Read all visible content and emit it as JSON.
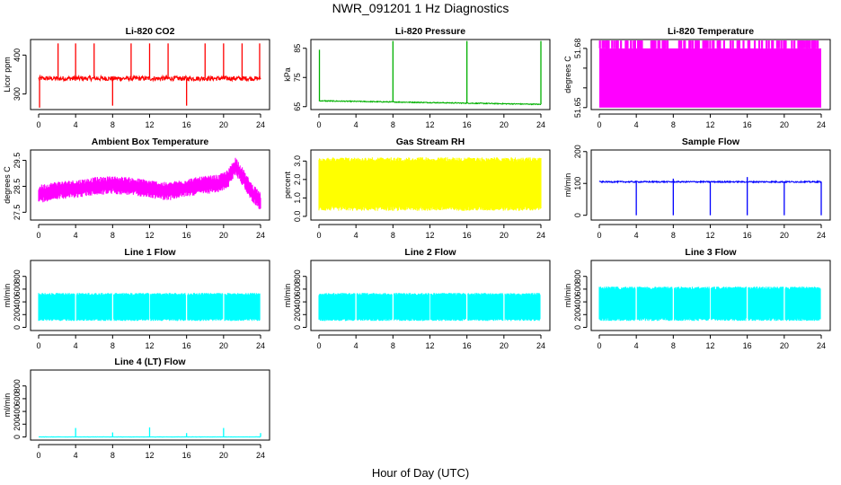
{
  "figure": {
    "title": "NWR_091201  1 Hz Diagnostics",
    "xlabel": "Hour of Day (UTC)"
  },
  "chart_data": [
    {
      "type": "line",
      "title": "Li-820 CO2",
      "ylabel": "Licor ppm",
      "color": "#ff0000",
      "xlim": [
        0,
        24
      ],
      "xticks": [
        0,
        4,
        8,
        12,
        16,
        20,
        24
      ],
      "ylim": [
        260,
        440
      ],
      "yticks": [
        300,
        400
      ],
      "baseline": 340,
      "noise": 6,
      "spikes": [
        {
          "x": 2.1,
          "y": 430
        },
        {
          "x": 4.0,
          "y": 430
        },
        {
          "x": 6.0,
          "y": 430
        },
        {
          "x": 8.0,
          "y": 270
        },
        {
          "x": 10.0,
          "y": 430
        },
        {
          "x": 12.0,
          "y": 430
        },
        {
          "x": 14.0,
          "y": 430
        },
        {
          "x": 16.0,
          "y": 270
        },
        {
          "x": 18.0,
          "y": 430
        },
        {
          "x": 20.0,
          "y": 430
        },
        {
          "x": 22.0,
          "y": 430
        },
        {
          "x": 23.9,
          "y": 430
        },
        {
          "x": 0.1,
          "y": 265
        }
      ]
    },
    {
      "type": "line",
      "title": "Li-820 Pressure",
      "ylabel": "kPa",
      "color": "#00b000",
      "xlim": [
        0,
        24
      ],
      "xticks": [
        0,
        4,
        8,
        12,
        16,
        20,
        24
      ],
      "ylim": [
        64,
        88
      ],
      "yticks": [
        65,
        75,
        85
      ],
      "start": 67.0,
      "end": 65.8,
      "noise": 0.15,
      "spikes": [
        {
          "x": 0.05,
          "y": 84.5
        },
        {
          "x": 8.0,
          "y": 87.5
        },
        {
          "x": 16.0,
          "y": 87.5
        },
        {
          "x": 24.0,
          "y": 87.5
        }
      ]
    },
    {
      "type": "area",
      "title": "Li-820 Temperature",
      "ylabel": "degrees C",
      "color": "#ff00ff",
      "xlim": [
        0,
        24
      ],
      "xticks": [
        0,
        4,
        8,
        12,
        16,
        20,
        24
      ],
      "ylim": [
        51.649,
        51.6845
      ],
      "yticks": [
        51.65,
        51.66,
        51.67,
        51.68
      ],
      "ytick_labels": [
        "51.65",
        "",
        "",
        "51.68"
      ],
      "fill_low": 51.65,
      "fill_high": 51.68,
      "band_top": 51.684
    },
    {
      "type": "line",
      "title": "Ambient Box Temperature",
      "ylabel": "degrees C",
      "color": "#ff00ff",
      "xlim": [
        0,
        24
      ],
      "xticks": [
        0,
        4,
        8,
        12,
        16,
        20,
        24
      ],
      "ylim": [
        27.2,
        29.9
      ],
      "yticks": [
        27.5,
        28.5,
        29.5
      ],
      "envelope_x": [
        0,
        2,
        4,
        6,
        8,
        10,
        12,
        14,
        16,
        18,
        19.5,
        20.5,
        21.3,
        22,
        23,
        24
      ],
      "envelope_y": [
        28.2,
        28.35,
        28.4,
        28.5,
        28.55,
        28.5,
        28.4,
        28.3,
        28.45,
        28.55,
        28.6,
        28.8,
        29.3,
        28.9,
        28.3,
        27.9
      ],
      "noise": 0.35
    },
    {
      "type": "area",
      "title": "Gas Stream RH",
      "ylabel": "percent",
      "color": "#ffff00",
      "xlim": [
        0,
        24
      ],
      "xticks": [
        0,
        4,
        8,
        12,
        16,
        20,
        24
      ],
      "ylim": [
        -0.2,
        3.6
      ],
      "yticks": [
        0.0,
        1.0,
        2.0,
        3.0
      ],
      "ytick_labels": [
        "0.0",
        "1.0",
        "2.0",
        "3.0"
      ],
      "fill_low": 0.3,
      "fill_high": 3.2
    },
    {
      "type": "line",
      "title": "Sample Flow",
      "ylabel": "ml/min",
      "color": "#0000ff",
      "xlim": [
        0,
        24
      ],
      "xticks": [
        0,
        4,
        8,
        12,
        16,
        20,
        24
      ],
      "ylim": [
        -15,
        205
      ],
      "yticks": [
        0,
        100,
        200
      ],
      "baseline": 105,
      "noise": 2,
      "spikes": [
        {
          "x": 4.0,
          "y": 0
        },
        {
          "x": 8.0,
          "y": 0
        },
        {
          "x": 12.0,
          "y": 0
        },
        {
          "x": 16.0,
          "y": 0
        },
        {
          "x": 20.0,
          "y": 0
        },
        {
          "x": 24.0,
          "y": 0
        },
        {
          "x": 8.0,
          "y": 115
        },
        {
          "x": 16.0,
          "y": 120
        }
      ]
    },
    {
      "type": "area",
      "title": "Line 1 Flow",
      "ylabel": "ml/min",
      "color": "#00ffff",
      "xlim": [
        0,
        24
      ],
      "xticks": [
        0,
        4,
        8,
        12,
        16,
        20,
        24
      ],
      "ylim": [
        -50,
        1050
      ],
      "yticks": [
        0,
        200,
        400,
        600,
        800
      ],
      "fill_low": 100,
      "fill_high": 540,
      "gaps": [
        4,
        8,
        12,
        16,
        20,
        24
      ]
    },
    {
      "type": "area",
      "title": "Line 2 Flow",
      "ylabel": "ml/min",
      "color": "#00ffff",
      "xlim": [
        0,
        24
      ],
      "xticks": [
        0,
        4,
        8,
        12,
        16,
        20,
        24
      ],
      "ylim": [
        -50,
        1050
      ],
      "yticks": [
        0,
        200,
        400,
        600,
        800
      ],
      "fill_low": 100,
      "fill_high": 540,
      "gaps": [
        4,
        8,
        12,
        16,
        20,
        24
      ]
    },
    {
      "type": "area",
      "title": "Line 3 Flow",
      "ylabel": "ml/min",
      "color": "#00ffff",
      "xlim": [
        0,
        24
      ],
      "xticks": [
        0,
        4,
        8,
        12,
        16,
        20,
        24
      ],
      "ylim": [
        -50,
        1050
      ],
      "yticks": [
        0,
        200,
        400,
        600,
        800
      ],
      "fill_low": 100,
      "fill_high": 640,
      "gaps": [
        4,
        8,
        12,
        16,
        20,
        24
      ]
    },
    {
      "type": "line",
      "title": "Line 4 (LT) Flow",
      "ylabel": "ml/min",
      "color": "#00ffff",
      "xlim": [
        0,
        24
      ],
      "xticks": [
        0,
        4,
        8,
        12,
        16,
        20,
        24
      ],
      "ylim": [
        -50,
        1050
      ],
      "yticks": [
        0,
        200,
        400,
        600,
        800
      ],
      "baseline": 0,
      "noise": 2,
      "spikes": [
        {
          "x": 4.0,
          "y": 140
        },
        {
          "x": 8.0,
          "y": 70
        },
        {
          "x": 12.0,
          "y": 150
        },
        {
          "x": 16.0,
          "y": 60
        },
        {
          "x": 20.0,
          "y": 140
        },
        {
          "x": 24.0,
          "y": 60
        }
      ]
    }
  ]
}
